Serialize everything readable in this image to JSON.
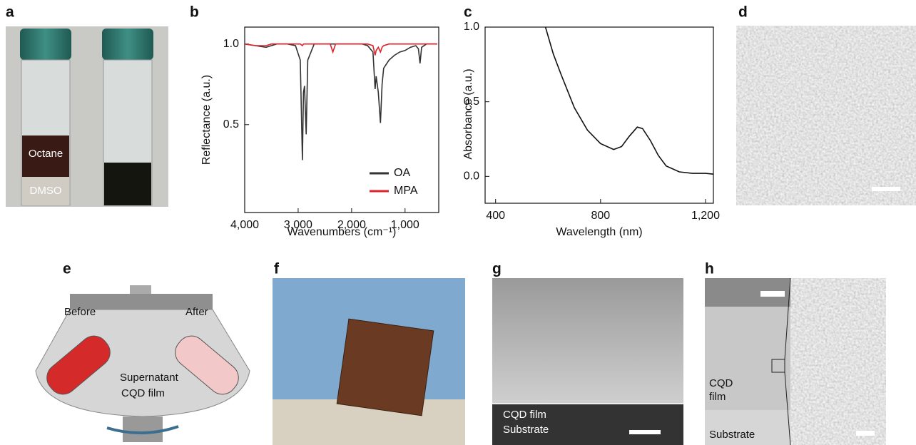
{
  "chart_data": [
    {
      "type": "line",
      "label": "b",
      "xlabel": "Wavenumbers (cm⁻¹)",
      "ylabel": "Reflectance (a.u.)",
      "x": [
        4000,
        3800,
        3600,
        3500,
        3400,
        3200,
        3050,
        2960,
        2920,
        2900,
        2880,
        2850,
        2820,
        2700,
        2400,
        2350,
        2300,
        2000,
        1800,
        1700,
        1600,
        1560,
        1540,
        1500,
        1460,
        1430,
        1400,
        1300,
        1200,
        1100,
        1000,
        900,
        800,
        750,
        720,
        690,
        600,
        500,
        400
      ],
      "series": [
        {
          "name": "OA",
          "color": "#333333",
          "values": [
            1,
            0.99,
            0.98,
            0.99,
            1,
            1,
            0.99,
            0.9,
            0.28,
            0.7,
            0.74,
            0.44,
            0.9,
            1,
            1,
            1,
            1,
            1,
            1,
            0.99,
            0.95,
            0.72,
            0.8,
            0.7,
            0.51,
            0.75,
            0.85,
            0.9,
            0.93,
            0.95,
            0.96,
            0.98,
            0.99,
            0.97,
            0.88,
            0.98,
            1,
            1,
            1
          ]
        },
        {
          "name": "MPA",
          "color": "#e0202a",
          "values": [
            1,
            0.99,
            0.99,
            1,
            1,
            1,
            1,
            1,
            0.99,
            1,
            1,
            1,
            1,
            1,
            1,
            0.95,
            1,
            1,
            1,
            1,
            0.99,
            0.93,
            0.96,
            0.98,
            0.95,
            0.98,
            0.99,
            1,
            1,
            1,
            1,
            1,
            1,
            1,
            1,
            1,
            1,
            1,
            1
          ]
        }
      ],
      "xlim": [
        4000,
        370
      ],
      "xticks": [
        {
          "value": 4000,
          "label": "4,000"
        },
        {
          "value": 3000,
          "label": "3,000"
        },
        {
          "value": 2000,
          "label": "2,000"
        },
        {
          "value": 1000,
          "label": "1,000"
        }
      ],
      "ylim": [
        -0.045,
        1.105
      ],
      "yticks": [
        0.5,
        {
          "value": 1,
          "label": "1.0"
        }
      ],
      "legend": "lower right"
    },
    {
      "type": "line",
      "label": "c",
      "xlabel": "Wavelength (nm)",
      "ylabel": "Absorbance (a.u.)",
      "x": [
        590,
        620,
        650,
        700,
        750,
        800,
        850,
        880,
        910,
        940,
        960,
        990,
        1020,
        1050,
        1100,
        1150,
        1200,
        1230
      ],
      "series": [
        {
          "color": "#111111",
          "values": [
            1.0,
            0.82,
            0.68,
            0.46,
            0.31,
            0.22,
            0.18,
            0.2,
            0.27,
            0.33,
            0.32,
            0.24,
            0.14,
            0.07,
            0.03,
            0.02,
            0.02,
            0.015
          ]
        }
      ],
      "xlim": [
        360,
        1230
      ],
      "xticks": [
        400,
        800,
        {
          "value": 1200,
          "label": "1,200"
        }
      ],
      "ylim": [
        -0.18,
        1.0
      ],
      "yticks": [
        {
          "value": 0,
          "label": "0.0"
        },
        0.5,
        {
          "value": 1,
          "label": "1.0"
        }
      ]
    }
  ],
  "panels": {
    "a": {
      "label": "a",
      "top": "Octane",
      "bottom": "DMSO"
    },
    "d": {
      "label": "d"
    },
    "e": {
      "label": "e",
      "before": "Before",
      "after": "After",
      "supernatant": "Supernatant",
      "film": "CQD film"
    },
    "f": {
      "label": "f"
    },
    "g": {
      "label": "g",
      "film": "CQD film",
      "substrate": "Substrate"
    },
    "h": {
      "label": "h",
      "film_lines": [
        "CQD",
        "film"
      ],
      "substrate": "Substrate"
    }
  }
}
